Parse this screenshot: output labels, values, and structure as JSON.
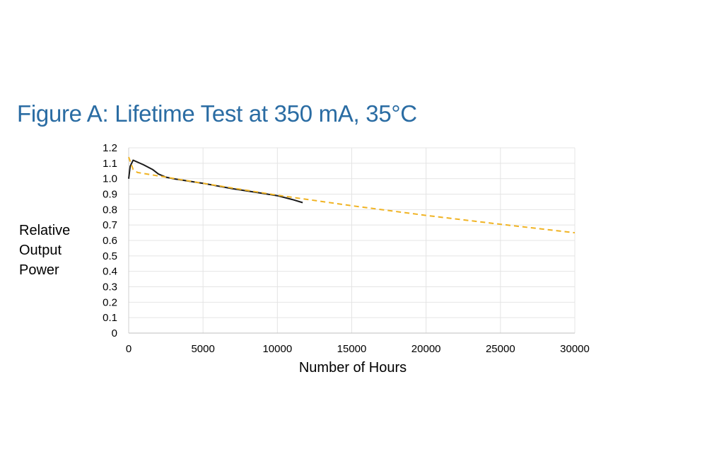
{
  "chart_data": {
    "type": "line",
    "title": "Figure A: Lifetime Test at 350 mA, 35°C",
    "xlabel": "Number of Hours",
    "ylabel_lines": [
      "Relative",
      "Output",
      "Power"
    ],
    "xlim": [
      0,
      30000
    ],
    "ylim": [
      0,
      1.2
    ],
    "x_ticks": [
      0,
      5000,
      10000,
      15000,
      20000,
      25000,
      30000
    ],
    "y_ticks": [
      0,
      0.1,
      0.2,
      0.3,
      0.4,
      0.5,
      0.6,
      0.7,
      0.8,
      0.9,
      1.0,
      1.1,
      1.2
    ],
    "y_tick_labels": [
      "0",
      "0.1",
      "0.2",
      "0.3",
      "0.4",
      "0.5",
      "0.6",
      "0.7",
      "0.8",
      "0.9",
      "1.0",
      "1.1",
      "1.2"
    ],
    "grid": true,
    "series": [
      {
        "style": "solid",
        "color": "#1a1a1a",
        "x": [
          0,
          100,
          300,
          1000,
          1600,
          2000,
          2500,
          3000,
          5000,
          7000,
          9000,
          10000,
          11000,
          11700
        ],
        "y": [
          1.0,
          1.08,
          1.12,
          1.09,
          1.06,
          1.03,
          1.01,
          1.0,
          0.97,
          0.935,
          0.905,
          0.89,
          0.865,
          0.845
        ]
      },
      {
        "style": "dashed",
        "color": "#f0b323",
        "x": [
          0,
          300,
          600,
          5000,
          10000,
          15000,
          20000,
          25000,
          30000
        ],
        "y": [
          1.14,
          1.06,
          1.04,
          0.97,
          0.893,
          0.825,
          0.762,
          0.705,
          0.65
        ]
      }
    ]
  }
}
